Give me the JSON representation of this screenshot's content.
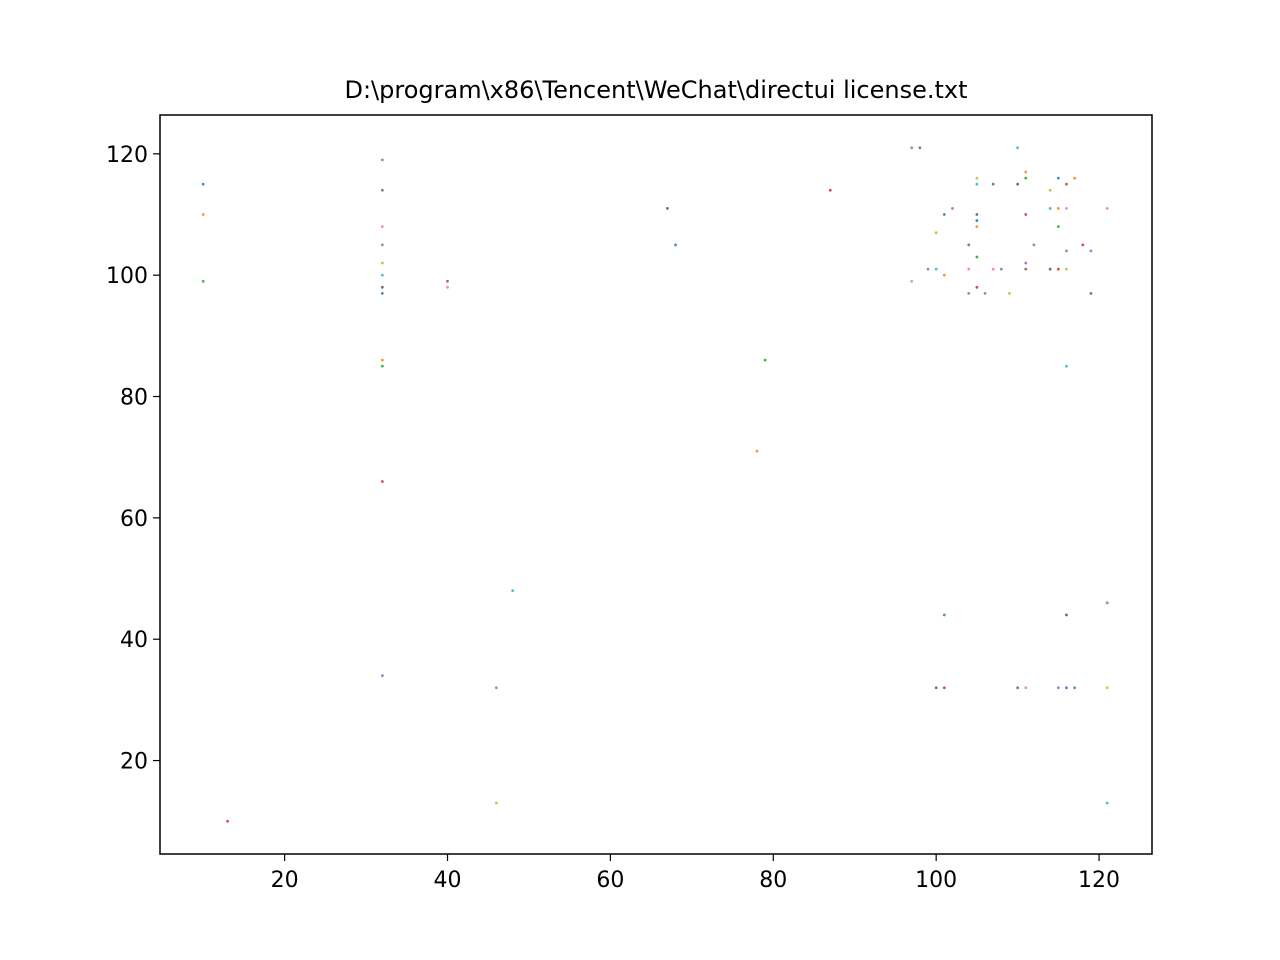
{
  "chart_data": {
    "type": "scatter",
    "title": "D:\\program\\x86\\Tencent\\WeChat\\directui license.txt",
    "xlabel": "",
    "ylabel": "",
    "xlim": [
      4.7,
      126.5
    ],
    "ylim": [
      4.6,
      126.4
    ],
    "grid": false,
    "legend": "none",
    "x_ticks": [
      20,
      40,
      60,
      80,
      100,
      120
    ],
    "y_ticks": [
      20,
      40,
      60,
      80,
      100,
      120
    ],
    "palette": [
      "#1f77b4",
      "#ff7f0e",
      "#2ca02c",
      "#d62728",
      "#9467bd",
      "#8c564b",
      "#e377c2",
      "#7f7f7f",
      "#bcbd22",
      "#17becf",
      "#555555"
    ],
    "points": [
      [
        10,
        115
      ],
      [
        10,
        110
      ],
      [
        10,
        99
      ],
      [
        13,
        10
      ],
      [
        32,
        119
      ],
      [
        32,
        114
      ],
      [
        32,
        108
      ],
      [
        32,
        105
      ],
      [
        32,
        102
      ],
      [
        32,
        100
      ],
      [
        32,
        98
      ],
      [
        32,
        97
      ],
      [
        32,
        86
      ],
      [
        32,
        85
      ],
      [
        32,
        66
      ],
      [
        32,
        34
      ],
      [
        40,
        99
      ],
      [
        40,
        98
      ],
      [
        46,
        32
      ],
      [
        46,
        13
      ],
      [
        48,
        48
      ],
      [
        67,
        111
      ],
      [
        68,
        105
      ],
      [
        78,
        71
      ],
      [
        79,
        86
      ],
      [
        87,
        114
      ],
      [
        97,
        121
      ],
      [
        98,
        121
      ],
      [
        97,
        99
      ],
      [
        99,
        101
      ],
      [
        100,
        107
      ],
      [
        100,
        101
      ],
      [
        100,
        32
      ],
      [
        101,
        110
      ],
      [
        101,
        100
      ],
      [
        101,
        44
      ],
      [
        101,
        32
      ],
      [
        102,
        111
      ],
      [
        104,
        105
      ],
      [
        104,
        101
      ],
      [
        104,
        97
      ],
      [
        105,
        116
      ],
      [
        105,
        115
      ],
      [
        105,
        110
      ],
      [
        105,
        109
      ],
      [
        105,
        108
      ],
      [
        105,
        103
      ],
      [
        105,
        98
      ],
      [
        106,
        97
      ],
      [
        107,
        115
      ],
      [
        107,
        101
      ],
      [
        108,
        101
      ],
      [
        109,
        97
      ],
      [
        110,
        121
      ],
      [
        110,
        115
      ],
      [
        110,
        32
      ],
      [
        111,
        117
      ],
      [
        111,
        116
      ],
      [
        111,
        110
      ],
      [
        111,
        102
      ],
      [
        111,
        101
      ],
      [
        111,
        32
      ],
      [
        112,
        105
      ],
      [
        114,
        114
      ],
      [
        114,
        111
      ],
      [
        114,
        101
      ],
      [
        115,
        116
      ],
      [
        115,
        111
      ],
      [
        115,
        108
      ],
      [
        115,
        101
      ],
      [
        115,
        32
      ],
      [
        116,
        115
      ],
      [
        116,
        111
      ],
      [
        116,
        104
      ],
      [
        116,
        101
      ],
      [
        116,
        85
      ],
      [
        116,
        44
      ],
      [
        116,
        32
      ],
      [
        117,
        116
      ],
      [
        117,
        32
      ],
      [
        118,
        105
      ],
      [
        119,
        104
      ],
      [
        119,
        97
      ],
      [
        121,
        111
      ],
      [
        121,
        46
      ],
      [
        121,
        32
      ],
      [
        121,
        13
      ]
    ]
  }
}
